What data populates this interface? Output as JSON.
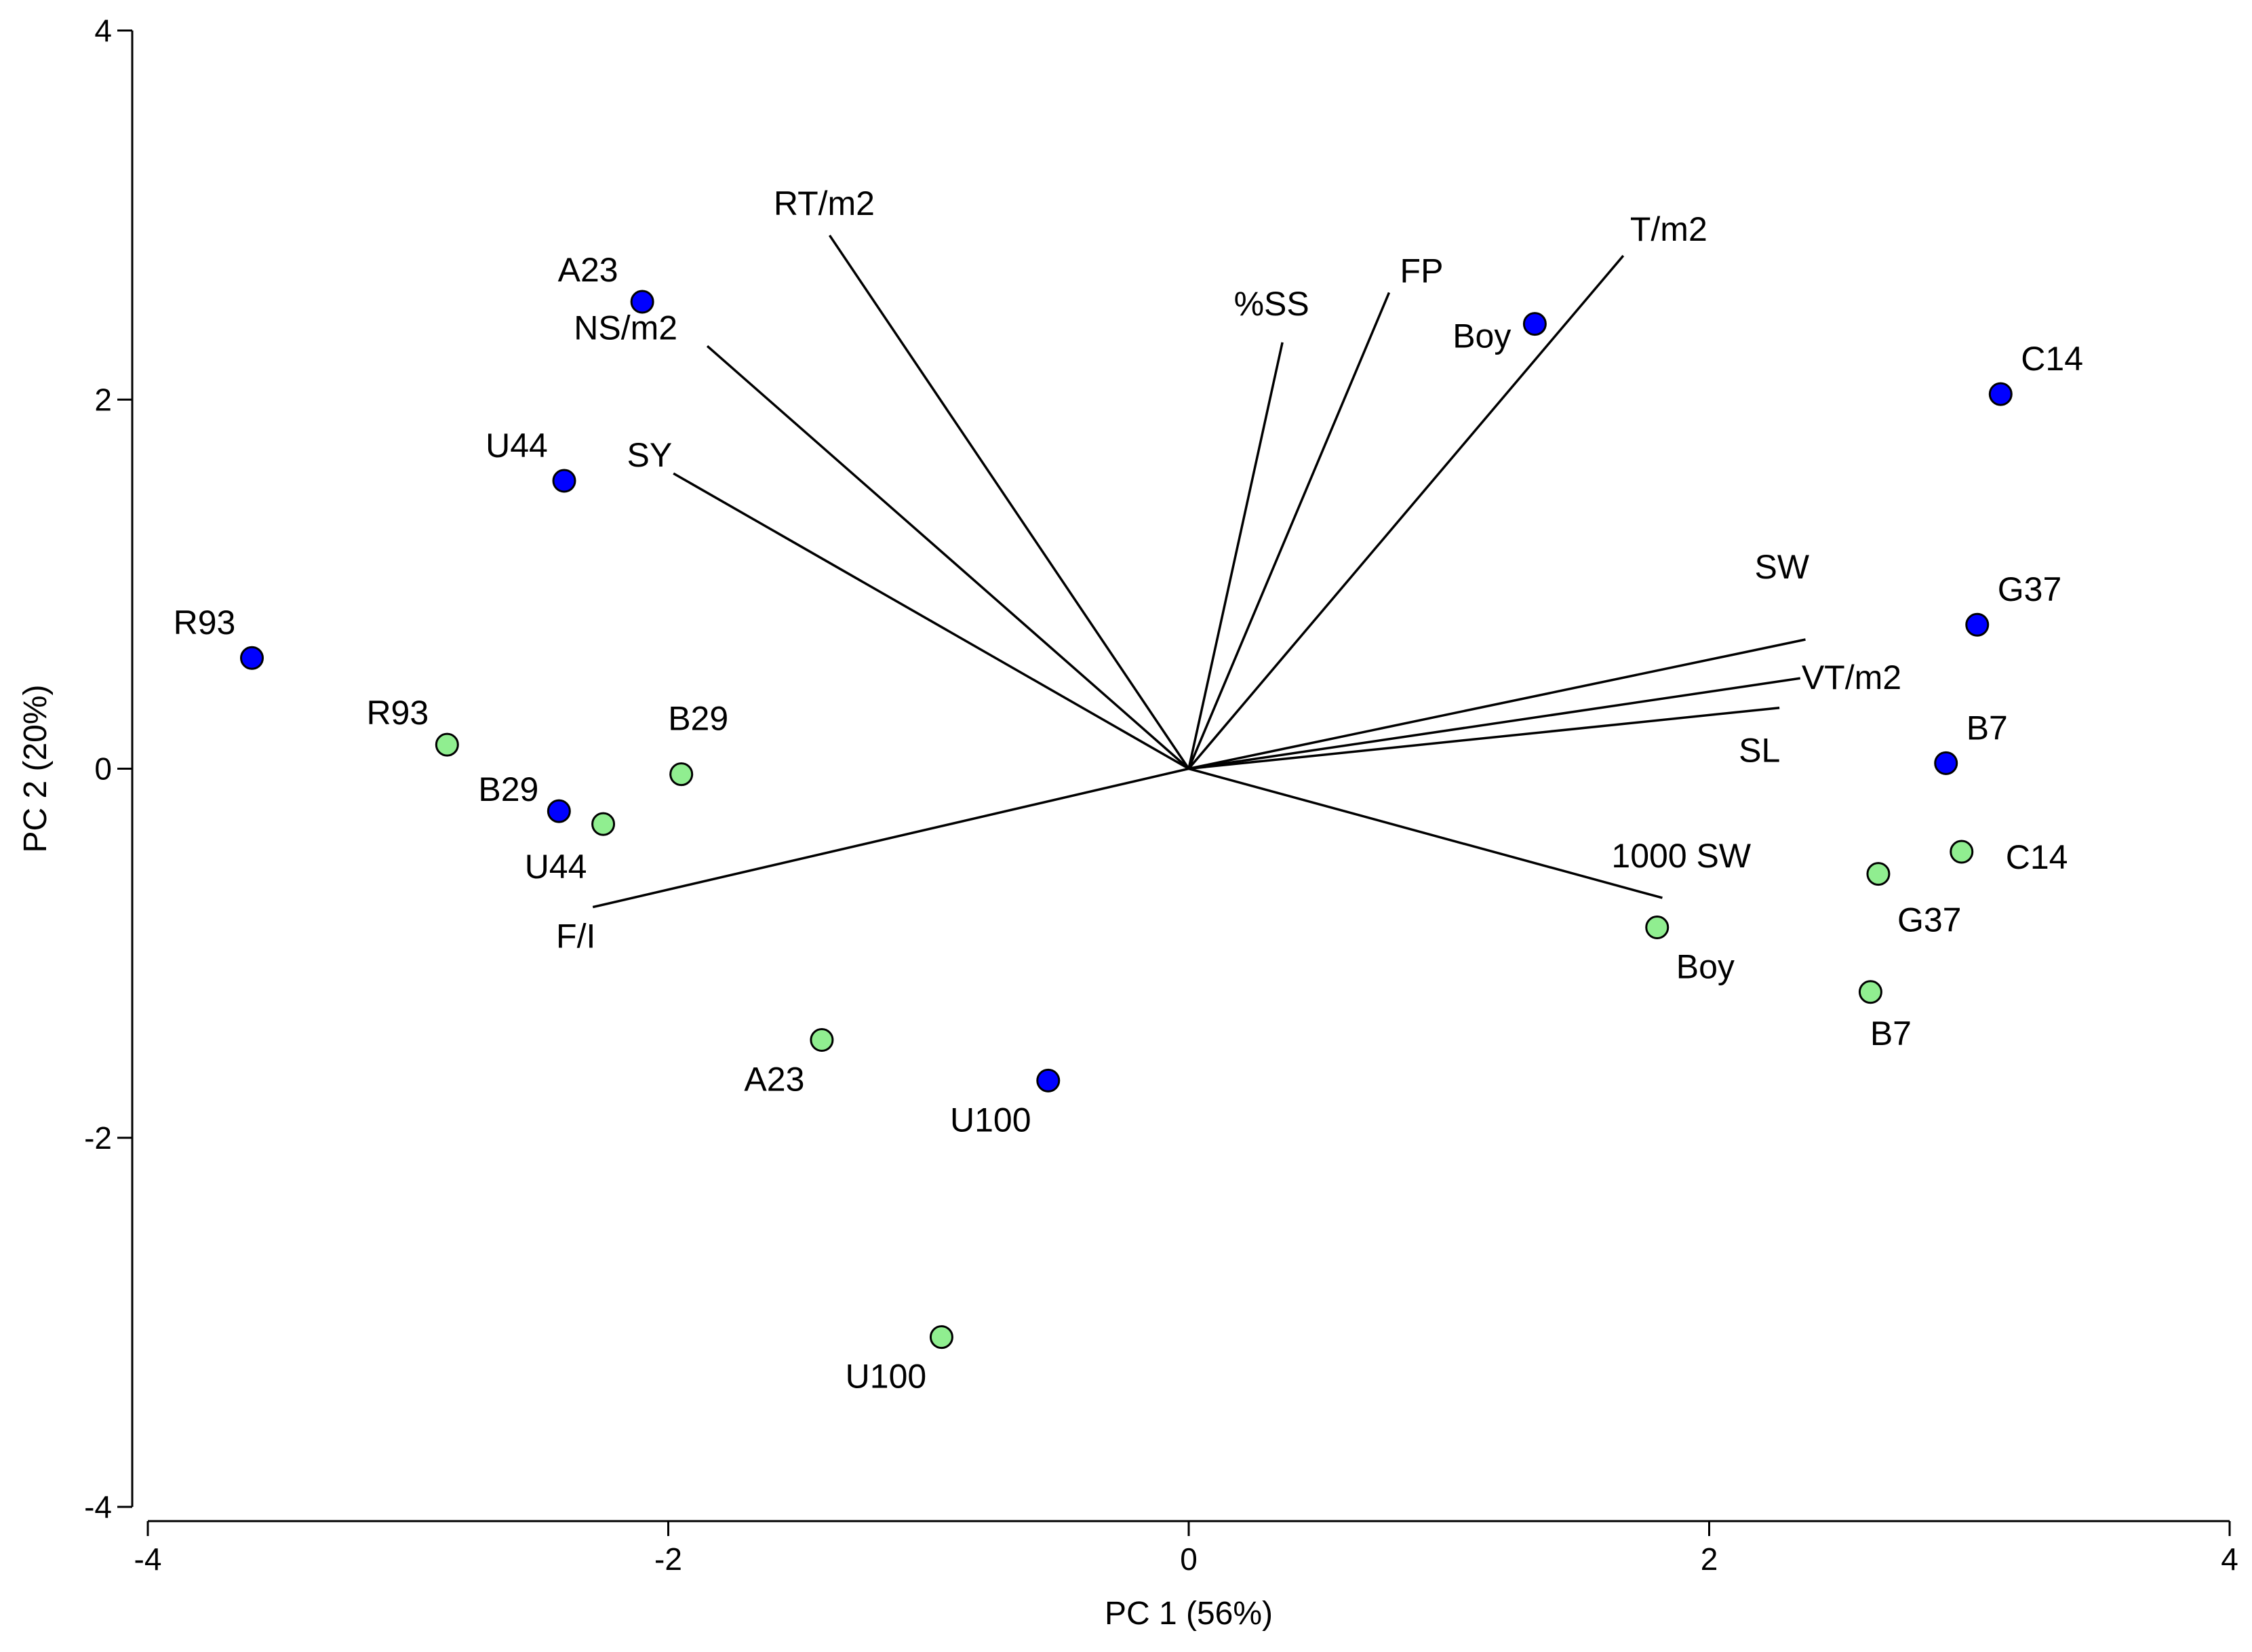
{
  "chart_data": {
    "type": "scatter",
    "subtype": "pca-biplot",
    "title": "",
    "xlabel": "PC 1 (56%)",
    "ylabel": "PC 2 (20%)",
    "xlim": [
      -4,
      4
    ],
    "ylim": [
      -4,
      4
    ],
    "x_ticks": [
      -4,
      -2,
      0,
      2,
      4
    ],
    "y_ticks": [
      -4,
      -2,
      0,
      2,
      4
    ],
    "x_tick_labels": [
      "-4",
      "-2",
      "0",
      "2",
      "4"
    ],
    "y_tick_labels": [
      "-4",
      "-2",
      "0",
      "2",
      "4"
    ],
    "grid": false,
    "legend": "none",
    "series": [
      {
        "name": "blue",
        "color": "#0000ff",
        "points": [
          {
            "label": "A23",
            "x": -2.1,
            "y": 2.53
          },
          {
            "label": "U44",
            "x": -2.4,
            "y": 1.56
          },
          {
            "label": "R93",
            "x": -3.6,
            "y": 0.6
          },
          {
            "label": "B29",
            "x": -2.42,
            "y": -0.23
          },
          {
            "label": "U100",
            "x": -0.54,
            "y": -1.69
          },
          {
            "label": "Boy",
            "x": 1.33,
            "y": 2.41
          },
          {
            "label": "C14",
            "x": 3.12,
            "y": 2.03
          },
          {
            "label": "G37",
            "x": 3.03,
            "y": 0.78
          },
          {
            "label": "B7",
            "x": 2.91,
            "y": 0.03
          }
        ]
      },
      {
        "name": "green",
        "color": "#90ee90",
        "points": [
          {
            "label": "R93",
            "x": -2.85,
            "y": 0.13
          },
          {
            "label": "B29",
            "x": -1.95,
            "y": -0.03
          },
          {
            "label": "U44",
            "x": -2.25,
            "y": -0.3
          },
          {
            "label": "A23",
            "x": -1.41,
            "y": -1.47
          },
          {
            "label": "U100",
            "x": -0.95,
            "y": -3.08
          },
          {
            "label": "Boy",
            "x": 1.8,
            "y": -0.86
          },
          {
            "label": "C14",
            "x": 2.97,
            "y": -0.45
          },
          {
            "label": "G37",
            "x": 2.65,
            "y": -0.57
          },
          {
            "label": "B7",
            "x": 2.62,
            "y": -1.21
          }
        ]
      }
    ],
    "vectors": [
      {
        "label": "RT/m2",
        "x": -1.38,
        "y": 2.89
      },
      {
        "label": "NS/m2",
        "x": -1.85,
        "y": 2.29
      },
      {
        "label": "SY",
        "x": -1.98,
        "y": 1.6
      },
      {
        "label": "%SS",
        "x": 0.36,
        "y": 2.31
      },
      {
        "label": "FP",
        "x": 0.77,
        "y": 2.58
      },
      {
        "label": "T/m2",
        "x": 1.67,
        "y": 2.78
      },
      {
        "label": "SW",
        "x": 2.37,
        "y": 0.7
      },
      {
        "label": "VT/m2",
        "x": 2.35,
        "y": 0.49
      },
      {
        "label": "SL",
        "x": 2.27,
        "y": 0.33
      },
      {
        "label": "1000 SW",
        "x": 1.82,
        "y": -0.7
      },
      {
        "label": "F/I",
        "x": -2.29,
        "y": -0.75
      }
    ]
  }
}
